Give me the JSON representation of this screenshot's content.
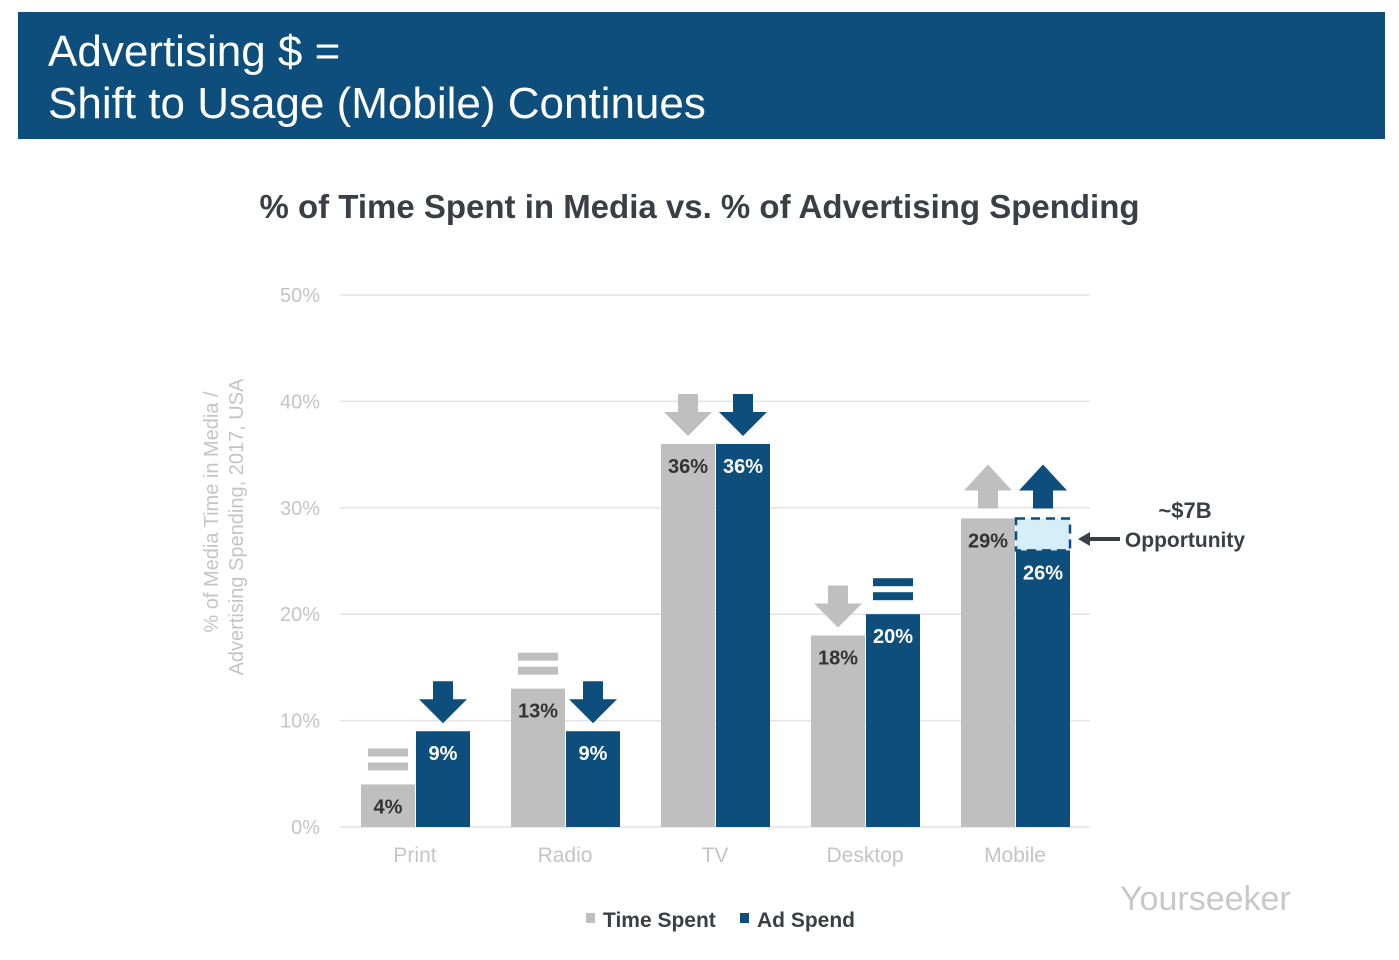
{
  "header": {
    "line1": "Advertising $ =",
    "line2": "Shift to Usage (Mobile) Continues"
  },
  "watermark": "Yourseeker",
  "chart_data": {
    "type": "bar",
    "title": "% of Time Spent in Media vs. % of Advertising Spending",
    "ylabel_line1": "% of Media Time in Media /",
    "ylabel_line2": "Advertising Spending, 2017, USA",
    "ylim": [
      0,
      50
    ],
    "yticks": [
      "0%",
      "10%",
      "20%",
      "30%",
      "40%",
      "50%"
    ],
    "grid": true,
    "legend_placement": "bottom",
    "categories": [
      "Print",
      "Radio",
      "TV",
      "Desktop",
      "Mobile"
    ],
    "series": [
      {
        "name": "Time Spent",
        "color": "#bfbfbf",
        "values": [
          4,
          13,
          36,
          18,
          29
        ],
        "labels": [
          "4%",
          "13%",
          "36%",
          "18%",
          "29%"
        ],
        "trend": [
          "equal",
          "equal",
          "down",
          "down",
          "up"
        ]
      },
      {
        "name": "Ad Spend",
        "color": "#0d4e7c",
        "values": [
          9,
          9,
          36,
          20,
          26
        ],
        "labels": [
          "9%",
          "9%",
          "36%",
          "20%",
          "26%"
        ],
        "trend": [
          "down",
          "down",
          "down",
          "equal",
          "up"
        ]
      }
    ],
    "annotation": {
      "gap_category": "Mobile",
      "gap_from": 26,
      "gap_to": 29,
      "line1": "~$7B",
      "line2": "Opportunity",
      "gap_color": "#d6eefa"
    }
  }
}
